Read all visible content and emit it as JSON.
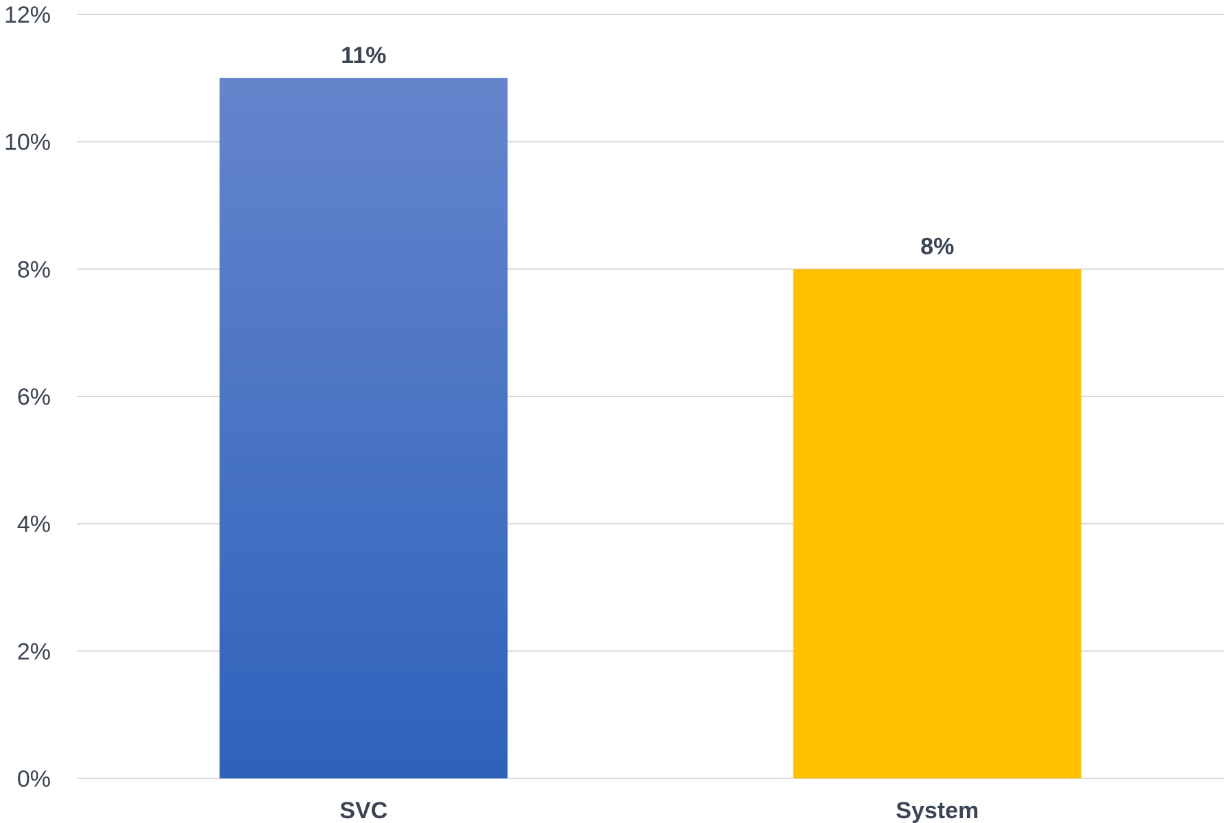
{
  "chart_data": {
    "type": "bar",
    "categories": [
      "SVC",
      "System"
    ],
    "values": [
      11,
      8
    ],
    "value_labels": [
      "11%",
      "8%"
    ],
    "colors": [
      "#4472c4",
      "#ffc000"
    ],
    "gradient_colors": {
      "SVC": [
        "#6585cc",
        "#2e62bb"
      ]
    },
    "ylim": [
      0,
      12
    ],
    "yticks": [
      0,
      2,
      4,
      6,
      8,
      10,
      12
    ],
    "ytick_labels": [
      "0%",
      "2%",
      "4%",
      "6%",
      "8%",
      "10%",
      "12%"
    ],
    "grid": true,
    "title": "",
    "xlabel": "",
    "ylabel": ""
  }
}
